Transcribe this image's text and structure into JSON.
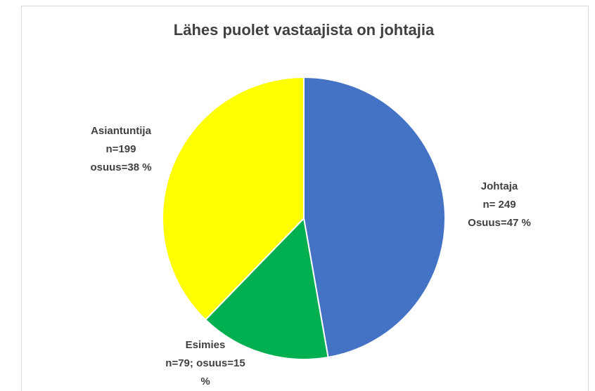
{
  "chart_data": {
    "type": "pie",
    "title": "Lähes puolet vastaajista on johtajia",
    "categories": [
      "Johtaja",
      "Esimies",
      "Asiantuntija"
    ],
    "values": [
      249,
      79,
      199
    ],
    "value_labels": [
      [
        "n= 249",
        "Osuus=47 %"
      ],
      [
        "n=79; osuus=15",
        "%"
      ],
      [
        "n=199",
        "osuus=38 %"
      ]
    ],
    "colors": [
      "#4472c4",
      "#00b050",
      "#ffff00"
    ]
  }
}
